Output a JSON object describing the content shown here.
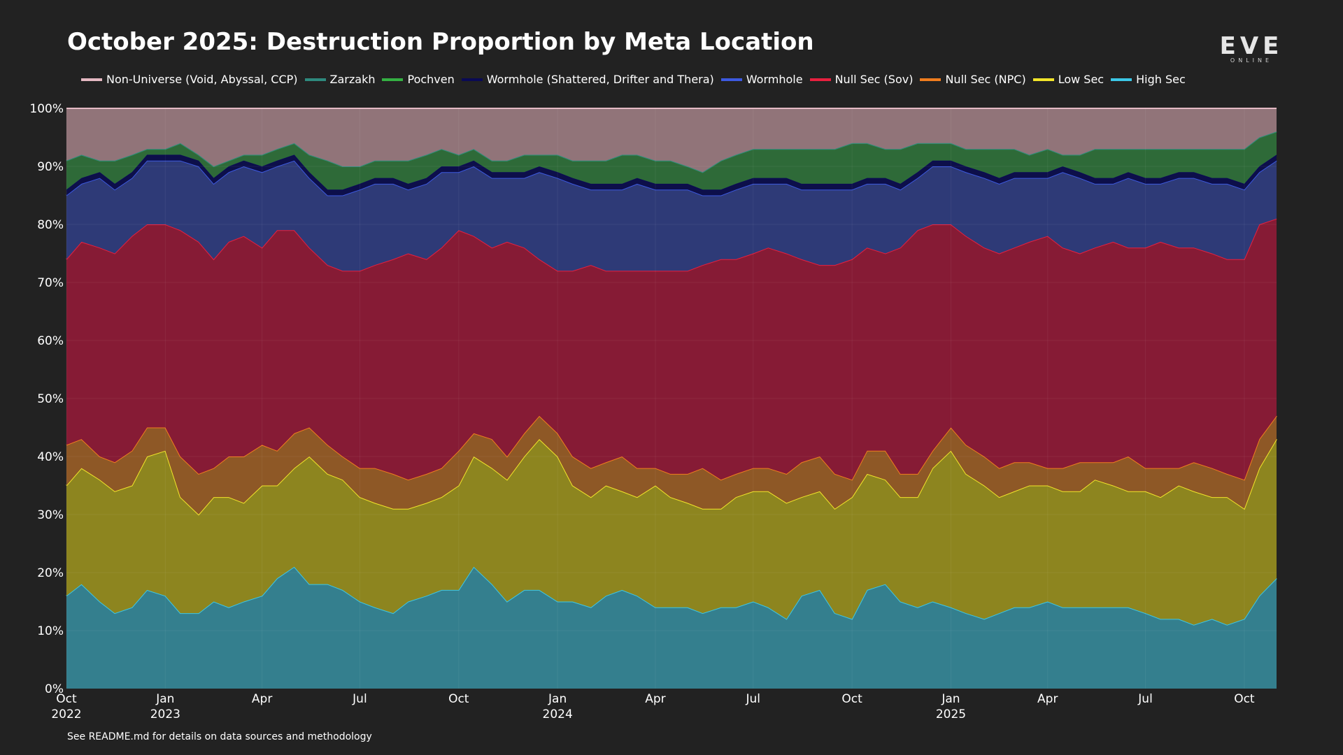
{
  "title": "October 2025: Destruction Proportion by Meta Location",
  "logo": {
    "mark": "EVE",
    "sub": "ONLINE"
  },
  "footnote": "See README.md for details on data sources and methodology",
  "chart_data": {
    "type": "area",
    "stacked": true,
    "normalized": true,
    "x_start": "2022-10-01",
    "x_end": "2025-10-31",
    "ylim": [
      0,
      100
    ],
    "y_ticks": [
      "0%",
      "10%",
      "20%",
      "30%",
      "40%",
      "50%",
      "60%",
      "70%",
      "80%",
      "90%",
      "100%"
    ],
    "x_ticks": [
      {
        "date": "2022-10-01",
        "label": "Oct",
        "year": "2022"
      },
      {
        "date": "2023-01-01",
        "label": "Jan",
        "year": "2023"
      },
      {
        "date": "2023-04-01",
        "label": "Apr",
        "year": ""
      },
      {
        "date": "2023-07-01",
        "label": "Jul",
        "year": ""
      },
      {
        "date": "2023-10-01",
        "label": "Oct",
        "year": ""
      },
      {
        "date": "2024-01-01",
        "label": "Jan",
        "year": "2024"
      },
      {
        "date": "2024-04-01",
        "label": "Apr",
        "year": ""
      },
      {
        "date": "2024-07-01",
        "label": "Jul",
        "year": ""
      },
      {
        "date": "2024-10-01",
        "label": "Oct",
        "year": ""
      },
      {
        "date": "2025-01-01",
        "label": "Jan",
        "year": "2025"
      },
      {
        "date": "2025-04-01",
        "label": "Apr",
        "year": ""
      },
      {
        "date": "2025-07-01",
        "label": "Jul",
        "year": ""
      },
      {
        "date": "2025-10-01",
        "label": "Oct",
        "year": ""
      }
    ],
    "x": [
      "2022-10-01",
      "2022-10-15",
      "2022-11-01",
      "2022-11-15",
      "2022-12-01",
      "2022-12-15",
      "2023-01-01",
      "2023-01-15",
      "2023-02-01",
      "2023-02-15",
      "2023-03-01",
      "2023-03-15",
      "2023-04-01",
      "2023-04-15",
      "2023-05-01",
      "2023-05-15",
      "2023-06-01",
      "2023-06-15",
      "2023-07-01",
      "2023-07-15",
      "2023-08-01",
      "2023-08-15",
      "2023-09-01",
      "2023-09-15",
      "2023-10-01",
      "2023-10-15",
      "2023-11-01",
      "2023-11-15",
      "2023-12-01",
      "2023-12-15",
      "2024-01-01",
      "2024-01-15",
      "2024-02-01",
      "2024-02-15",
      "2024-03-01",
      "2024-03-15",
      "2024-04-01",
      "2024-04-15",
      "2024-05-01",
      "2024-05-15",
      "2024-06-01",
      "2024-06-15",
      "2024-07-01",
      "2024-07-15",
      "2024-08-01",
      "2024-08-15",
      "2024-09-01",
      "2024-09-15",
      "2024-10-01",
      "2024-10-15",
      "2024-11-01",
      "2024-11-15",
      "2024-12-01",
      "2024-12-15",
      "2025-01-01",
      "2025-01-15",
      "2025-02-01",
      "2025-02-15",
      "2025-03-01",
      "2025-03-15",
      "2025-04-01",
      "2025-04-15",
      "2025-05-01",
      "2025-05-15",
      "2025-06-01",
      "2025-06-15",
      "2025-07-01",
      "2025-07-15",
      "2025-08-01",
      "2025-08-15",
      "2025-09-01",
      "2025-09-15",
      "2025-10-01",
      "2025-10-15",
      "2025-10-31"
    ],
    "cumulative_top": true,
    "series": [
      {
        "name": "High Sec",
        "color": "#3cc7e6",
        "fill": "#347f8e",
        "values": [
          16,
          18,
          15,
          13,
          14,
          17,
          16,
          13,
          13,
          15,
          14,
          15,
          16,
          19,
          21,
          18,
          18,
          17,
          15,
          14,
          13,
          15,
          16,
          17,
          17,
          21,
          18,
          15,
          17,
          17,
          15,
          15,
          14,
          16,
          17,
          16,
          14,
          14,
          14,
          13,
          14,
          14,
          15,
          14,
          12,
          16,
          17,
          13,
          12,
          17,
          18,
          15,
          14,
          15,
          14,
          13,
          12,
          13,
          14,
          14,
          15,
          14,
          14,
          14,
          14,
          14,
          13,
          12,
          12,
          11,
          12,
          11,
          12,
          16,
          19
        ]
      },
      {
        "name": "Low Sec",
        "color": "#f2e52a",
        "fill": "#8d851f",
        "values": [
          35,
          38,
          36,
          34,
          35,
          40,
          41,
          33,
          30,
          33,
          33,
          32,
          35,
          35,
          38,
          40,
          37,
          36,
          33,
          32,
          31,
          31,
          32,
          33,
          35,
          40,
          38,
          36,
          40,
          43,
          40,
          35,
          33,
          35,
          34,
          33,
          35,
          33,
          32,
          31,
          31,
          33,
          34,
          34,
          32,
          33,
          34,
          31,
          33,
          37,
          36,
          33,
          33,
          38,
          41,
          37,
          35,
          33,
          34,
          35,
          35,
          34,
          34,
          36,
          35,
          34,
          34,
          33,
          35,
          34,
          33,
          33,
          31,
          38,
          43
        ]
      },
      {
        "name": "Null Sec (NPC)",
        "color": "#f07d1e",
        "fill": "#8e5826",
        "values": [
          42,
          43,
          40,
          39,
          41,
          45,
          45,
          40,
          37,
          38,
          40,
          40,
          42,
          41,
          44,
          45,
          42,
          40,
          38,
          38,
          37,
          36,
          37,
          38,
          41,
          44,
          43,
          40,
          44,
          47,
          44,
          40,
          38,
          39,
          40,
          38,
          38,
          37,
          37,
          38,
          36,
          37,
          38,
          38,
          37,
          39,
          40,
          37,
          36,
          41,
          41,
          37,
          37,
          41,
          45,
          42,
          40,
          38,
          39,
          39,
          38,
          38,
          39,
          39,
          39,
          40,
          38,
          38,
          38,
          39,
          38,
          37,
          36,
          43,
          47
        ]
      },
      {
        "name": "Null Sec (Sov)",
        "color": "#e8203f",
        "fill": "#861b35",
        "values": [
          74,
          77,
          76,
          75,
          78,
          80,
          80,
          79,
          77,
          74,
          77,
          78,
          76,
          79,
          79,
          76,
          73,
          72,
          72,
          73,
          74,
          75,
          74,
          76,
          79,
          78,
          76,
          77,
          76,
          74,
          72,
          72,
          73,
          72,
          72,
          72,
          72,
          72,
          72,
          73,
          74,
          74,
          75,
          76,
          75,
          74,
          73,
          73,
          74,
          76,
          75,
          76,
          79,
          80,
          80,
          78,
          76,
          75,
          76,
          77,
          78,
          76,
          75,
          76,
          77,
          76,
          76,
          77,
          76,
          76,
          75,
          74,
          74,
          80,
          81
        ]
      },
      {
        "name": "Wormhole",
        "color": "#3d5ae0",
        "fill": "#2e3a77",
        "values": [
          85,
          87,
          88,
          86,
          88,
          91,
          91,
          91,
          90,
          87,
          89,
          90,
          89,
          90,
          91,
          88,
          85,
          85,
          86,
          87,
          87,
          86,
          87,
          89,
          89,
          90,
          88,
          88,
          88,
          89,
          88,
          87,
          86,
          86,
          86,
          87,
          86,
          86,
          86,
          85,
          85,
          86,
          87,
          87,
          87,
          86,
          86,
          86,
          86,
          87,
          87,
          86,
          88,
          90,
          90,
          89,
          88,
          87,
          88,
          88,
          88,
          89,
          88,
          87,
          87,
          88,
          87,
          87,
          88,
          88,
          87,
          87,
          86,
          89,
          91
        ]
      },
      {
        "name": "Wormhole (Shattered, Drifter and Thera)",
        "color": "#0a0a55",
        "fill": "#0d0f4a",
        "values": [
          86,
          88,
          89,
          87,
          89,
          92,
          92,
          92,
          91,
          88,
          90,
          91,
          90,
          91,
          92,
          89,
          86,
          86,
          87,
          88,
          88,
          87,
          88,
          90,
          90,
          91,
          89,
          89,
          89,
          90,
          89,
          88,
          87,
          87,
          87,
          88,
          87,
          87,
          87,
          86,
          86,
          87,
          88,
          88,
          88,
          87,
          87,
          87,
          87,
          88,
          88,
          87,
          89,
          91,
          91,
          90,
          89,
          88,
          89,
          89,
          89,
          90,
          89,
          88,
          88,
          89,
          88,
          88,
          89,
          89,
          88,
          88,
          87,
          90,
          92
        ]
      },
      {
        "name": "Pochven",
        "color": "#34b043",
        "fill": "#2e6a38",
        "values": [
          91,
          92,
          91,
          91,
          92,
          93,
          93,
          94,
          92,
          90,
          91,
          92,
          92,
          93,
          94,
          92,
          91,
          90,
          90,
          91,
          91,
          91,
          92,
          93,
          92,
          93,
          91,
          91,
          92,
          92,
          92,
          91,
          91,
          91,
          92,
          92,
          91,
          91,
          90,
          89,
          91,
          92,
          93,
          93,
          93,
          93,
          93,
          93,
          94,
          94,
          93,
          93,
          94,
          94,
          94,
          93,
          93,
          93,
          93,
          92,
          93,
          92,
          92,
          93,
          93,
          93,
          93,
          93,
          93,
          93,
          93,
          93,
          93,
          95,
          96
        ]
      },
      {
        "name": "Zarzakh",
        "color": "#2e8a7e",
        "fill": "#2e6a60",
        "values": [
          91,
          92,
          91,
          91,
          92,
          93,
          93,
          94,
          92,
          90,
          91,
          92,
          92,
          93,
          94,
          92,
          91,
          90,
          90,
          91,
          91,
          91,
          92,
          93,
          92,
          93,
          91,
          91,
          92,
          92,
          92,
          91,
          91,
          91,
          92,
          92,
          91,
          91,
          90,
          89,
          91,
          92,
          93,
          93,
          93,
          93,
          93,
          93,
          94,
          94,
          93,
          93,
          94,
          94,
          94,
          93,
          93,
          93,
          93,
          92,
          93,
          92,
          92,
          93,
          93,
          93,
          93,
          93,
          93,
          93,
          93,
          93,
          93,
          95,
          96
        ]
      },
      {
        "name": "Non-Universe (Void, Abyssal, CCP)",
        "color": "#e4b8c2",
        "fill": "#917479",
        "values": [
          100,
          100,
          100,
          100,
          100,
          100,
          100,
          100,
          100,
          100,
          100,
          100,
          100,
          100,
          100,
          100,
          100,
          100,
          100,
          100,
          100,
          100,
          100,
          100,
          100,
          100,
          100,
          100,
          100,
          100,
          100,
          100,
          100,
          100,
          100,
          100,
          100,
          100,
          100,
          100,
          100,
          100,
          100,
          100,
          100,
          100,
          100,
          100,
          100,
          100,
          100,
          100,
          100,
          100,
          100,
          100,
          100,
          100,
          100,
          100,
          100,
          100,
          100,
          100,
          100,
          100,
          100,
          100,
          100,
          100,
          100,
          100,
          100,
          100,
          100
        ]
      }
    ]
  },
  "legend_order": [
    "Non-Universe (Void, Abyssal, CCP)",
    "Zarzakh",
    "Pochven",
    "Wormhole (Shattered, Drifter and Thera)",
    "Wormhole",
    "Null Sec (Sov)",
    "Null Sec (NPC)",
    "Low Sec",
    "High Sec"
  ]
}
